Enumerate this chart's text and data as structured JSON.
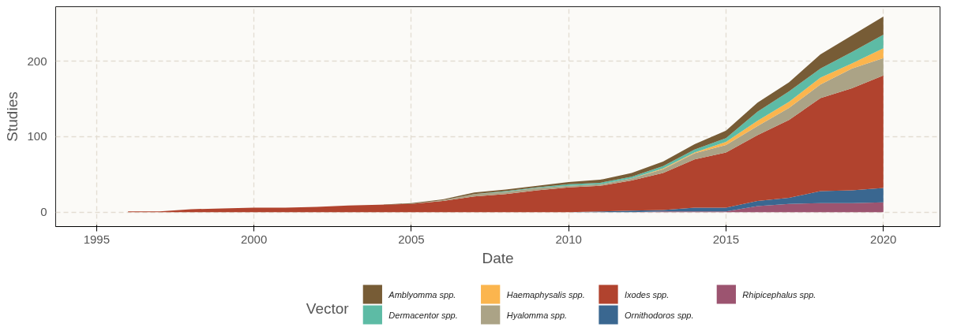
{
  "chart_data": {
    "type": "area",
    "stacked": true,
    "xlabel": "Date",
    "ylabel": "Studies",
    "legend_title": "Vector",
    "legend": "bottom",
    "grid": true,
    "x": [
      1996,
      1997,
      1998,
      1999,
      2000,
      2001,
      2002,
      2003,
      2004,
      2005,
      2006,
      2007,
      2008,
      2009,
      2010,
      2011,
      2012,
      2013,
      2014,
      2015,
      2016,
      2017,
      2018,
      2019,
      2020
    ],
    "xlim": [
      1993.7,
      2021.8
    ],
    "xticks": [
      1995,
      2000,
      2005,
      2010,
      2015,
      2020
    ],
    "ylim": [
      -19,
      272
    ],
    "yticks": [
      0,
      100,
      200
    ],
    "series": [
      {
        "name": "Rhipicephalus spp.",
        "color": "#9c5470",
        "values": [
          0,
          0,
          0,
          0,
          0,
          0,
          0,
          0,
          0,
          0,
          0,
          0,
          0,
          0,
          0,
          0,
          0,
          1,
          1,
          1,
          8,
          11,
          12,
          12,
          13
        ]
      },
      {
        "name": "Ornithodoros spp.",
        "color": "#3a6790",
        "values": [
          0,
          0,
          0,
          0,
          0,
          0,
          0,
          0,
          0,
          0,
          0,
          0,
          0,
          0,
          0,
          1,
          2,
          2,
          5,
          5,
          7,
          8,
          16,
          17,
          19
        ]
      },
      {
        "name": "Ixodes spp.",
        "color": "#b1432e",
        "values": [
          1,
          1,
          4,
          5,
          6,
          6,
          7,
          9,
          10,
          11,
          15,
          21,
          24,
          29,
          33,
          34,
          40,
          49,
          64,
          73,
          87,
          103,
          123,
          135,
          149
        ]
      },
      {
        "name": "Hyalomma spp.",
        "color": "#aba386",
        "values": [
          0,
          0,
          0,
          0,
          0,
          0,
          0,
          0,
          0,
          0,
          1,
          3,
          3,
          3,
          2,
          2,
          3,
          5,
          8,
          10,
          12,
          16,
          18,
          26,
          23
        ]
      },
      {
        "name": "Haemaphysalis spp.",
        "color": "#fbb54e",
        "values": [
          0,
          0,
          0,
          0,
          0,
          0,
          0,
          0,
          0,
          0,
          0,
          0,
          0,
          0,
          0,
          0,
          0,
          1,
          1,
          4,
          7,
          8,
          9,
          7,
          13
        ]
      },
      {
        "name": "Dermacentor spp.",
        "color": "#5dbba5",
        "values": [
          0,
          0,
          0,
          0,
          0,
          0,
          0,
          0,
          0,
          0,
          0,
          0,
          1,
          1,
          2,
          2,
          2,
          3,
          4,
          5,
          12,
          14,
          12,
          15,
          18
        ]
      },
      {
        "name": "Amblyomma spp.",
        "color": "#775c36",
        "values": [
          0,
          0,
          0,
          0,
          0,
          0,
          0,
          0,
          0,
          1,
          1,
          2,
          2,
          2,
          3,
          4,
          5,
          6,
          7,
          10,
          12,
          12,
          19,
          22,
          24
        ]
      }
    ]
  }
}
